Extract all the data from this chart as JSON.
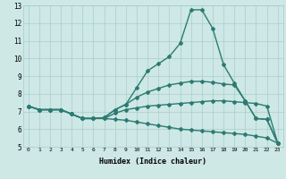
{
  "bg_color": "#cde8e5",
  "grid_color": "#aacccc",
  "line_color": "#2d7a72",
  "line_width": 1.0,
  "marker": "D",
  "marker_size": 2.0,
  "xlim": [
    -0.5,
    23.5
  ],
  "ylim": [
    5,
    13
  ],
  "xticks": [
    0,
    1,
    2,
    3,
    4,
    5,
    6,
    7,
    8,
    9,
    10,
    11,
    12,
    13,
    14,
    15,
    16,
    17,
    18,
    19,
    20,
    21,
    22,
    23
  ],
  "yticks": [
    5,
    6,
    7,
    8,
    9,
    10,
    11,
    12,
    13
  ],
  "xlabel": "Humidex (Indice chaleur)",
  "lines": [
    {
      "x": [
        0,
        1,
        2,
        3,
        4,
        5,
        6,
        7,
        8,
        9,
        10,
        11,
        12,
        13,
        14,
        15,
        16,
        17,
        18,
        19,
        20,
        21,
        22,
        23
      ],
      "y": [
        7.3,
        7.1,
        7.1,
        7.1,
        6.85,
        6.6,
        6.6,
        6.6,
        6.55,
        6.5,
        6.4,
        6.3,
        6.2,
        6.1,
        6.0,
        5.95,
        5.9,
        5.85,
        5.8,
        5.75,
        5.7,
        5.6,
        5.5,
        5.2
      ]
    },
    {
      "x": [
        0,
        1,
        2,
        3,
        4,
        5,
        6,
        7,
        8,
        9,
        10,
        11,
        12,
        13,
        14,
        15,
        16,
        17,
        18,
        19,
        20,
        21,
        22,
        23
      ],
      "y": [
        7.3,
        7.1,
        7.1,
        7.1,
        6.85,
        6.6,
        6.6,
        6.6,
        6.9,
        7.1,
        7.2,
        7.3,
        7.35,
        7.4,
        7.45,
        7.5,
        7.55,
        7.6,
        7.6,
        7.55,
        7.5,
        7.45,
        7.3,
        5.2
      ]
    },
    {
      "x": [
        0,
        1,
        2,
        3,
        4,
        5,
        6,
        7,
        8,
        9,
        10,
        11,
        12,
        13,
        14,
        15,
        16,
        17,
        18,
        19,
        20,
        21,
        22,
        23
      ],
      "y": [
        7.3,
        7.1,
        7.1,
        7.1,
        6.85,
        6.6,
        6.6,
        6.65,
        7.1,
        7.4,
        7.8,
        8.1,
        8.3,
        8.5,
        8.6,
        8.7,
        8.7,
        8.65,
        8.55,
        8.5,
        7.6,
        6.6,
        6.55,
        5.2
      ]
    },
    {
      "x": [
        0,
        1,
        2,
        3,
        4,
        5,
        6,
        7,
        8,
        9,
        10,
        11,
        12,
        13,
        14,
        15,
        16,
        17,
        18,
        19,
        20,
        21,
        22,
        23
      ],
      "y": [
        7.3,
        7.1,
        7.1,
        7.1,
        6.85,
        6.6,
        6.6,
        6.65,
        7.1,
        7.4,
        8.35,
        9.3,
        9.7,
        10.1,
        10.85,
        12.75,
        12.75,
        11.7,
        9.65,
        8.6,
        7.6,
        6.6,
        6.55,
        5.2
      ]
    }
  ]
}
